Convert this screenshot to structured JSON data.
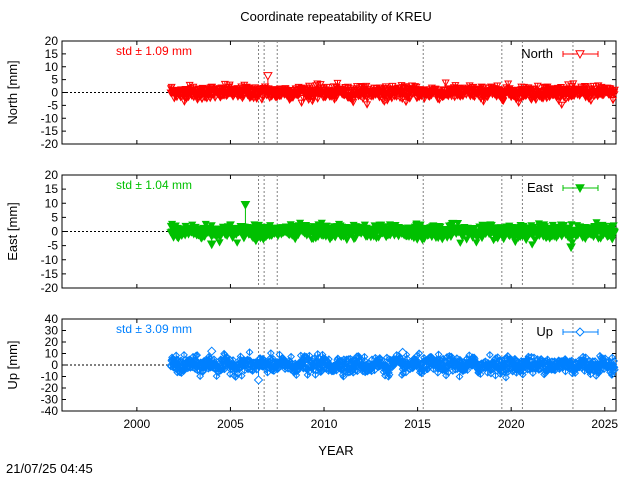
{
  "title": "Coordinate repeatability of KREU",
  "timestamp": "21/07/25 04:45",
  "chart_data": {
    "type": "scatter",
    "title": "Coordinate repeatability of KREU",
    "xlabel": "YEAR",
    "xlim": [
      1996,
      2025.6
    ],
    "x_ticks": [
      2000,
      2005,
      2010,
      2015,
      2020,
      2025
    ],
    "x_tick_labels": [
      "2000",
      "2005",
      "2010",
      "2015",
      "2020",
      "2025"
    ],
    "data_start_year": 2001.8,
    "event_lines": [
      2006.5,
      2006.8,
      2007.5,
      2015.3,
      2019.5,
      2020.6,
      2023.3
    ],
    "panels": [
      {
        "name": "North",
        "ylabel": "North [mm]",
        "ylim": [
          -20,
          20
        ],
        "y_ticks": [
          -20,
          -15,
          -10,
          -5,
          0,
          5,
          10,
          15,
          20
        ],
        "y_tick_labels": [
          "-20",
          "-15",
          "-10",
          "-5",
          "0",
          "5",
          "10",
          "15",
          "20"
        ],
        "std_label": "std ± 1.09 mm",
        "legend": "North",
        "color": "#ff0000",
        "marker": "triangle-down-open",
        "std_mm": 1.09,
        "outliers": [
          {
            "x": 2007.0,
            "y": 6.5
          }
        ]
      },
      {
        "name": "East",
        "ylabel": "East [mm]",
        "ylim": [
          -20,
          20
        ],
        "y_ticks": [
          -20,
          -15,
          -10,
          -5,
          0,
          5,
          10,
          15,
          20
        ],
        "y_tick_labels": [
          "-20",
          "-15",
          "-10",
          "-5",
          "0",
          "5",
          "10",
          "15",
          "20"
        ],
        "std_label": "std ± 1.04 mm",
        "legend": "East",
        "color": "#00c000",
        "marker": "triangle-down-filled",
        "std_mm": 1.04,
        "outliers": [
          {
            "x": 2005.8,
            "y": 9.5
          },
          {
            "x": 2023.2,
            "y": -5.5
          },
          {
            "x": 2004.0,
            "y": -4.5
          }
        ]
      },
      {
        "name": "Up",
        "ylabel": "Up [mm]",
        "ylim": [
          -40,
          40
        ],
        "y_ticks": [
          -40,
          -30,
          -20,
          -10,
          0,
          10,
          20,
          30,
          40
        ],
        "y_tick_labels": [
          "-40",
          "-30",
          "-20",
          "-10",
          "0",
          "10",
          "20",
          "30",
          "40"
        ],
        "std_label": "std ± 3.09 mm",
        "legend": "Up",
        "color": "#0080ff",
        "marker": "diamond-open",
        "std_mm": 3.09,
        "outliers": [
          {
            "x": 2004.0,
            "y": 12
          },
          {
            "x": 2014.2,
            "y": 11
          },
          {
            "x": 2006.5,
            "y": -13
          }
        ]
      }
    ]
  }
}
